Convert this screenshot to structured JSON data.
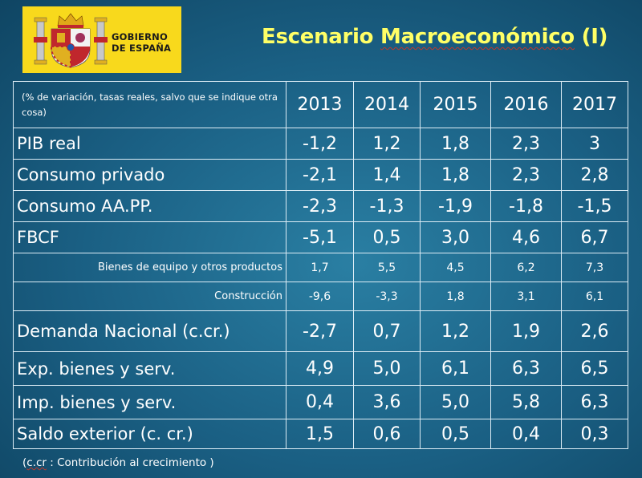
{
  "header": {
    "logo_line1": "GOBIERNO",
    "logo_line2": "DE ESPAÑA",
    "title_prefix": "Escenario ",
    "title_main": "Macroeconómico",
    "title_suffix": " (I)"
  },
  "table": {
    "note": "(% de variación, tasas reales,  salvo que se indique otra cosa)",
    "years": [
      "2013",
      "2014",
      "2015",
      "2016",
      "2017"
    ],
    "rows": [
      {
        "label": "PIB real",
        "values": [
          "-1,2",
          "1,2",
          "1,8",
          "2,3",
          "3"
        ]
      },
      {
        "label": "Consumo privado",
        "values": [
          "-2,1",
          "1,4",
          "1,8",
          "2,3",
          "2,8"
        ]
      },
      {
        "label": "Consumo  AA.PP.",
        "values": [
          "-2,3",
          "-1,3",
          "-1,9",
          "-1,8",
          "-1,5"
        ]
      },
      {
        "label": "FBCF",
        "values": [
          "-5,1",
          "0,5",
          "3,0",
          "4,6",
          "6,7"
        ]
      },
      {
        "label": "Bienes de equipo y otros productos",
        "values": [
          "1,7",
          "5,5",
          "4,5",
          "6,2",
          "7,3"
        ]
      },
      {
        "label": "Construcción",
        "values": [
          "-9,6",
          "-3,3",
          "1,8",
          "3,1",
          "6,1"
        ]
      },
      {
        "label": "Demanda Nacional  (c.cr.)",
        "values": [
          "-2,7",
          "0,7",
          "1,2",
          "1,9",
          "2,6"
        ]
      },
      {
        "label": "Exp.  bienes y  serv.",
        "values": [
          "4,9",
          "5,0",
          "6,1",
          "6,3",
          "6,5"
        ]
      },
      {
        "label": "Imp.  bienes y serv.",
        "values": [
          "0,4",
          "3,6",
          "5,0",
          "5,8",
          "6,3"
        ]
      },
      {
        "label": "Saldo exterior  (c. cr.)",
        "values": [
          "1,5",
          "0,6",
          "0,5",
          "0,4",
          "0,3"
        ]
      }
    ]
  },
  "footnote": {
    "open": "(",
    "abbr": "c.cr",
    "rest": " : Contribución al crecimiento )"
  },
  "colors": {
    "title": "#ffff66",
    "logo_background": "#f8d91c",
    "grid": "#dcecf5",
    "text": "#ffffff"
  }
}
